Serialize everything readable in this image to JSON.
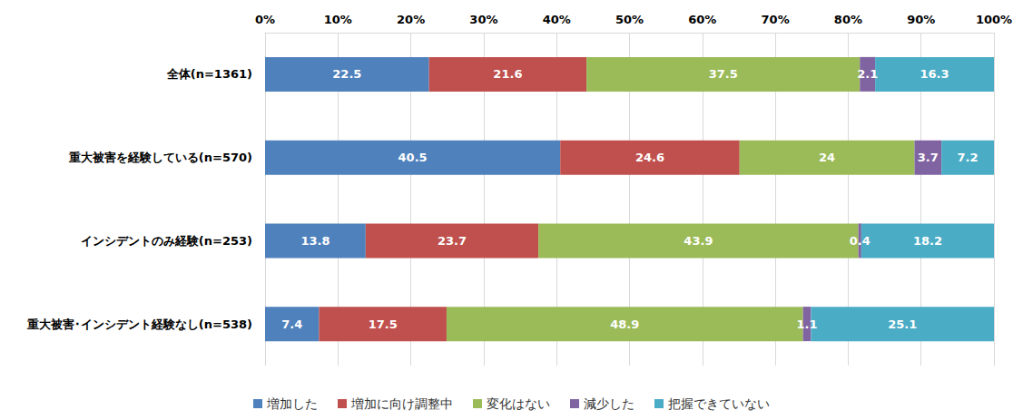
{
  "chart_data": {
    "type": "bar",
    "orientation": "horizontal",
    "stacked": true,
    "data_labels": true,
    "grid": true,
    "legend": "bottom",
    "categories": [
      "全体(n=1361)",
      "重大被害を経験している(n=570)",
      "インシデントのみ経験(n=253)",
      "重大被害･インシデント経験なし(n=538)"
    ],
    "series": [
      {
        "name": "増加した",
        "color": "#4F81BD",
        "values": [
          22.5,
          40.5,
          13.8,
          7.4
        ]
      },
      {
        "name": "増加に向け調整中",
        "color": "#C0504D",
        "values": [
          21.6,
          24.6,
          23.7,
          17.5
        ]
      },
      {
        "name": "変化はない",
        "color": "#9BBB59",
        "values": [
          37.5,
          24.0,
          43.9,
          48.9
        ]
      },
      {
        "name": "減少した",
        "color": "#8064A2",
        "values": [
          2.1,
          3.7,
          0.4,
          1.1
        ]
      },
      {
        "name": "把握できていない",
        "color": "#4BACC6",
        "values": [
          16.3,
          7.2,
          18.2,
          25.1
        ]
      }
    ],
    "xlim": [
      0,
      100
    ],
    "xticks": [
      {
        "value": 0,
        "label": "0%"
      },
      {
        "value": 10,
        "label": "10%"
      },
      {
        "value": 20,
        "label": "20%"
      },
      {
        "value": 30,
        "label": "30%"
      },
      {
        "value": 40,
        "label": "40%"
      },
      {
        "value": 50,
        "label": "50%"
      },
      {
        "value": 60,
        "label": "60%"
      },
      {
        "value": 70,
        "label": "70%"
      },
      {
        "value": 80,
        "label": "80%"
      },
      {
        "value": 90,
        "label": "90%"
      },
      {
        "value": 100,
        "label": "100%"
      }
    ]
  }
}
